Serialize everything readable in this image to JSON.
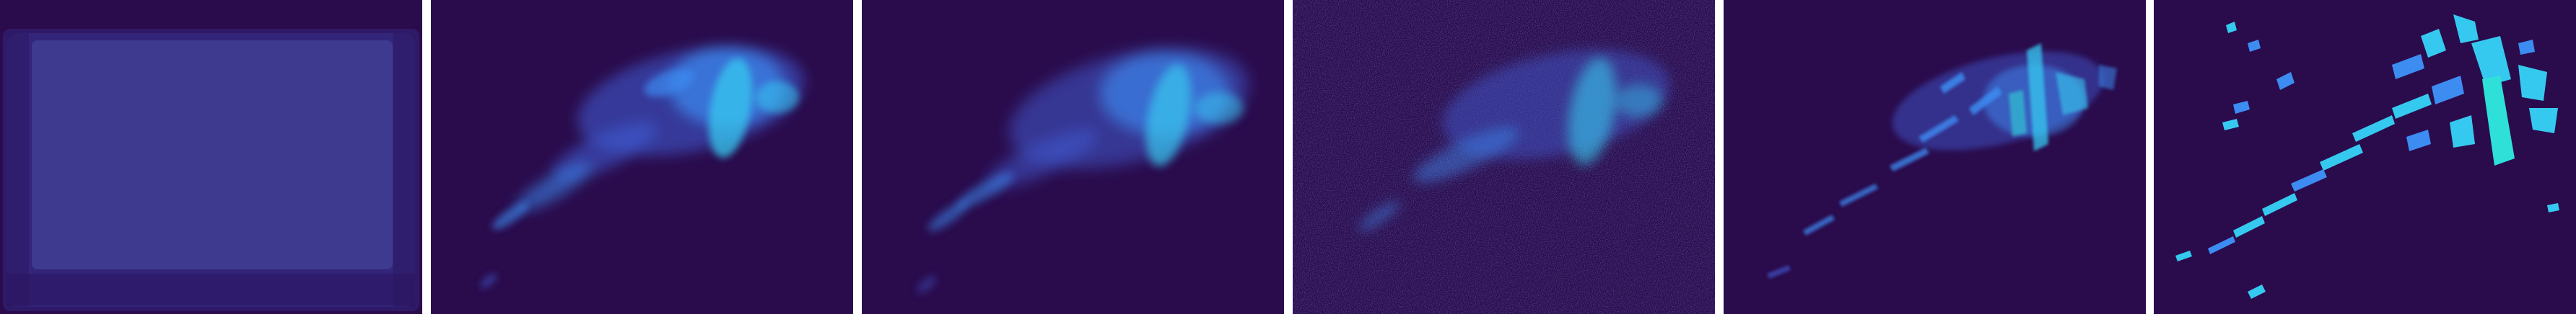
{
  "panels": [
    {
      "kind": "blank-frame",
      "icon": "blank-frame-image"
    },
    {
      "kind": "blurred-reconstruction",
      "icon": "heatmap-image"
    },
    {
      "kind": "blurred-reconstruction",
      "icon": "heatmap-image"
    },
    {
      "kind": "noisy-reconstruction",
      "icon": "heatmap-image"
    },
    {
      "kind": "sharp-reconstruction",
      "icon": "heatmap-image"
    },
    {
      "kind": "ground-truth-segmentation",
      "icon": "heatmap-image"
    }
  ],
  "colors": {
    "background": "#2a0b4c",
    "frame": "#3a2f86",
    "frame_inner": "#3d3a8f",
    "glow_low": "#3f5fd9",
    "glow_mid": "#3d8cf2",
    "glow_high": "#36c9f0",
    "highlight": "#2ee0d8"
  }
}
